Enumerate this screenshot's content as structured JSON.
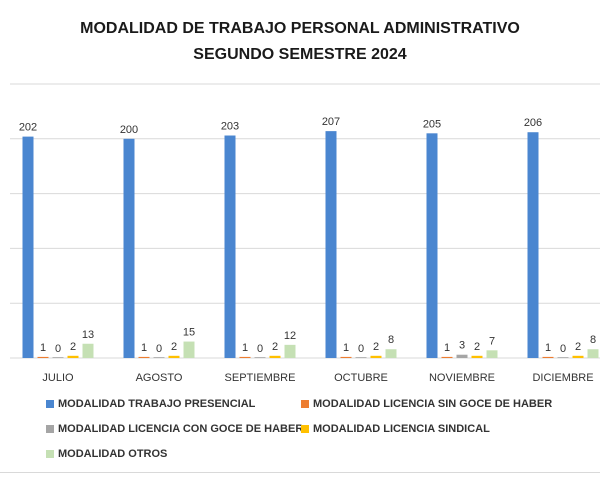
{
  "chart_data": {
    "type": "bar",
    "title_line1": "MODALIDAD DE TRABAJO PERSONAL ADMINISTRATIVO",
    "title_line2": "SEGUNDO SEMESTRE 2024",
    "categories": [
      "JULIO",
      "AGOSTO",
      "SEPTIEMBRE",
      "OCTUBRE",
      "NOVIEMBRE",
      "DICIEMBRE"
    ],
    "series": [
      {
        "name": "MODALIDAD TRABAJO PRESENCIAL",
        "color": "#4a86d0",
        "values": [
          202,
          200,
          203,
          207,
          205,
          206
        ]
      },
      {
        "name": "MODALIDAD LICENCIA SIN GOCE DE HABER",
        "color": "#ed7d31",
        "values": [
          1,
          1,
          1,
          1,
          1,
          1
        ]
      },
      {
        "name": "MODALIDAD LICENCIA CON GOCE DE HABER",
        "color": "#a5a5a5",
        "values": [
          0,
          0,
          0,
          0,
          3,
          0
        ]
      },
      {
        "name": "MODALIDAD LICENCIA SINDICAL",
        "color": "#ffc000",
        "values": [
          2,
          2,
          2,
          2,
          2,
          2
        ]
      },
      {
        "name": "MODALIDAD OTROS",
        "color": "#c5e0b4",
        "values": [
          13,
          15,
          12,
          8,
          7,
          8
        ]
      }
    ],
    "ylim": [
      0,
      250
    ],
    "grid": true,
    "legend_position": "bottom"
  }
}
